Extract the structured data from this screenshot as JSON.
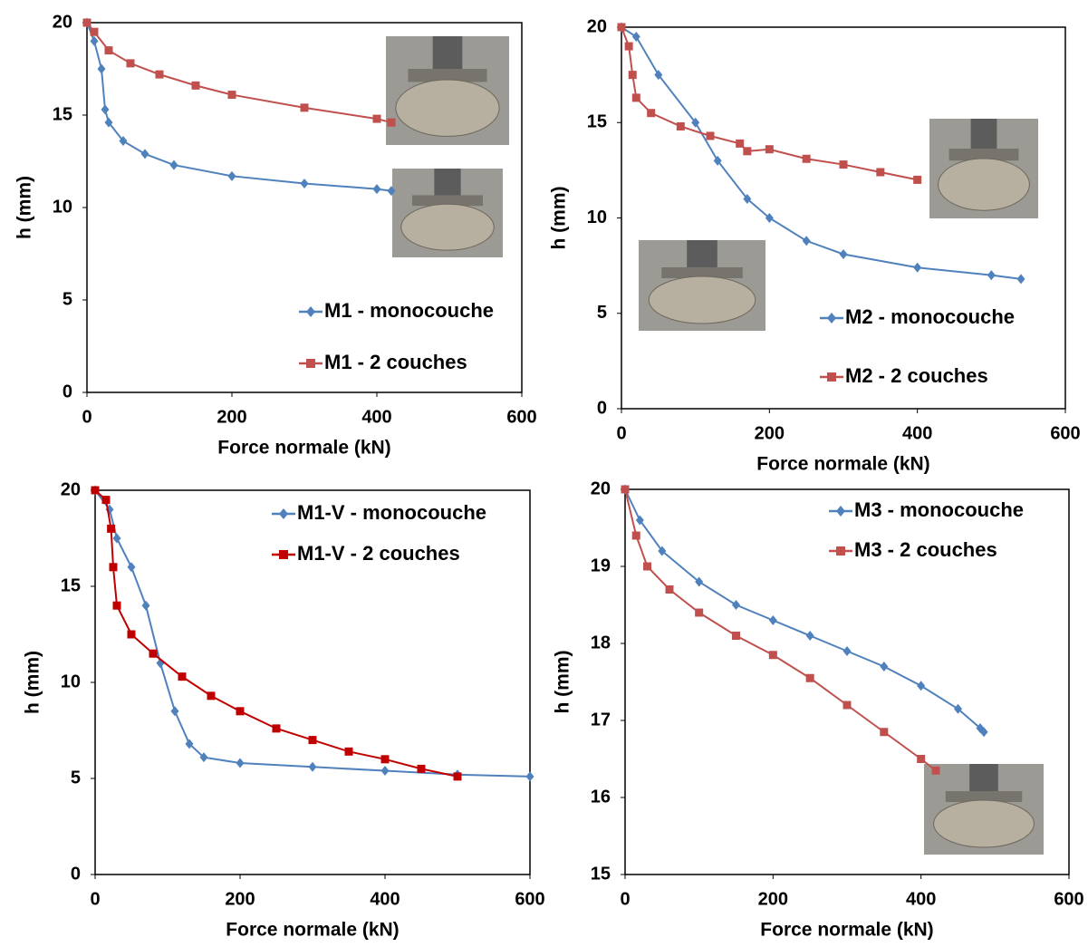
{
  "chart_data": [
    {
      "type": "line",
      "xlabel": "Force normale (kN)",
      "ylabel": "h (mm)",
      "xlim": [
        0,
        600
      ],
      "ylim": [
        0,
        20
      ],
      "xticks": [
        0,
        200,
        400,
        600
      ],
      "yticks": [
        0,
        5,
        10,
        15,
        20
      ],
      "legend": "lower right",
      "series": [
        {
          "name": "M1 - monocouche",
          "color": "#4f81bd",
          "marker": "diamond",
          "x": [
            0,
            10,
            20,
            25,
            30,
            50,
            80,
            120,
            200,
            300,
            400,
            420
          ],
          "values": [
            20,
            19,
            17.5,
            15.3,
            14.6,
            13.6,
            12.9,
            12.3,
            11.7,
            11.3,
            11,
            10.9
          ]
        },
        {
          "name": "M1 - 2 couches",
          "color": "#c0504d",
          "marker": "square",
          "x": [
            0,
            10,
            30,
            60,
            100,
            150,
            200,
            300,
            400,
            420
          ],
          "values": [
            20,
            19.5,
            18.5,
            17.8,
            17.2,
            16.6,
            16.1,
            15.4,
            14.8,
            14.6
          ]
        }
      ]
    },
    {
      "type": "line",
      "xlabel": "Force normale (kN)",
      "ylabel": "h (mm)",
      "xlim": [
        0,
        600
      ],
      "ylim": [
        0,
        20
      ],
      "xticks": [
        0,
        200,
        400,
        600
      ],
      "yticks": [
        0,
        5,
        10,
        15,
        20
      ],
      "legend": "lower right",
      "series": [
        {
          "name": "M2 - monocouche",
          "color": "#4f81bd",
          "marker": "diamond",
          "x": [
            0,
            20,
            50,
            100,
            130,
            170,
            200,
            250,
            300,
            400,
            500,
            540
          ],
          "values": [
            20,
            19.5,
            17.5,
            15,
            13,
            11,
            10,
            8.8,
            8.1,
            7.4,
            7,
            6.8
          ]
        },
        {
          "name": "M2 - 2 couches",
          "color": "#c0504d",
          "marker": "square",
          "x": [
            0,
            10,
            15,
            20,
            40,
            80,
            120,
            160,
            170,
            200,
            250,
            300,
            350,
            400
          ],
          "values": [
            20,
            19,
            17.5,
            16.3,
            15.5,
            14.8,
            14.3,
            13.9,
            13.5,
            13.6,
            13.1,
            12.8,
            12.4,
            12
          ]
        }
      ]
    },
    {
      "type": "line",
      "xlabel": "Force normale (kN)",
      "ylabel": "h (mm)",
      "xlim": [
        0,
        600
      ],
      "ylim": [
        0,
        20
      ],
      "xticks": [
        0,
        200,
        400,
        600
      ],
      "yticks": [
        0,
        5,
        10,
        15,
        20
      ],
      "legend": "upper right",
      "series": [
        {
          "name": "M1-V - monocouche",
          "color": "#4f81bd",
          "marker": "diamond",
          "x": [
            0,
            20,
            30,
            50,
            70,
            90,
            110,
            130,
            150,
            200,
            300,
            400,
            500,
            600
          ],
          "values": [
            20,
            19,
            17.5,
            16,
            14,
            11,
            8.5,
            6.8,
            6.1,
            5.8,
            5.6,
            5.4,
            5.2,
            5.1
          ]
        },
        {
          "name": "M1-V - 2 couches",
          "color": "#c00000",
          "marker": "square",
          "x": [
            0,
            15,
            22,
            25,
            30,
            50,
            80,
            120,
            160,
            200,
            250,
            300,
            350,
            400,
            450,
            500
          ],
          "values": [
            20,
            19.5,
            18,
            16,
            14,
            12.5,
            11.5,
            10.3,
            9.3,
            8.5,
            7.6,
            7,
            6.4,
            6,
            5.5,
            5.1
          ]
        }
      ]
    },
    {
      "type": "line",
      "xlabel": "Force normale (kN)",
      "ylabel": "h (mm)",
      "xlim": [
        0,
        600
      ],
      "ylim": [
        15,
        20
      ],
      "xticks": [
        0,
        200,
        400,
        600
      ],
      "yticks": [
        15,
        16,
        17,
        18,
        19,
        20
      ],
      "legend": "upper right",
      "series": [
        {
          "name": "M3 - monocouche",
          "color": "#4f81bd",
          "marker": "diamond",
          "x": [
            0,
            20,
            50,
            100,
            150,
            200,
            250,
            300,
            350,
            400,
            450,
            480,
            485
          ],
          "values": [
            20,
            19.6,
            19.2,
            18.8,
            18.5,
            18.3,
            18.1,
            17.9,
            17.7,
            17.45,
            17.15,
            16.9,
            16.85
          ]
        },
        {
          "name": "M3 - 2 couches",
          "color": "#c0504d",
          "marker": "square",
          "x": [
            0,
            15,
            30,
            60,
            100,
            150,
            200,
            250,
            300,
            350,
            400,
            420
          ],
          "values": [
            20,
            19.4,
            19,
            18.7,
            18.4,
            18.1,
            17.85,
            17.55,
            17.2,
            16.85,
            16.5,
            16.35
          ]
        }
      ]
    }
  ]
}
